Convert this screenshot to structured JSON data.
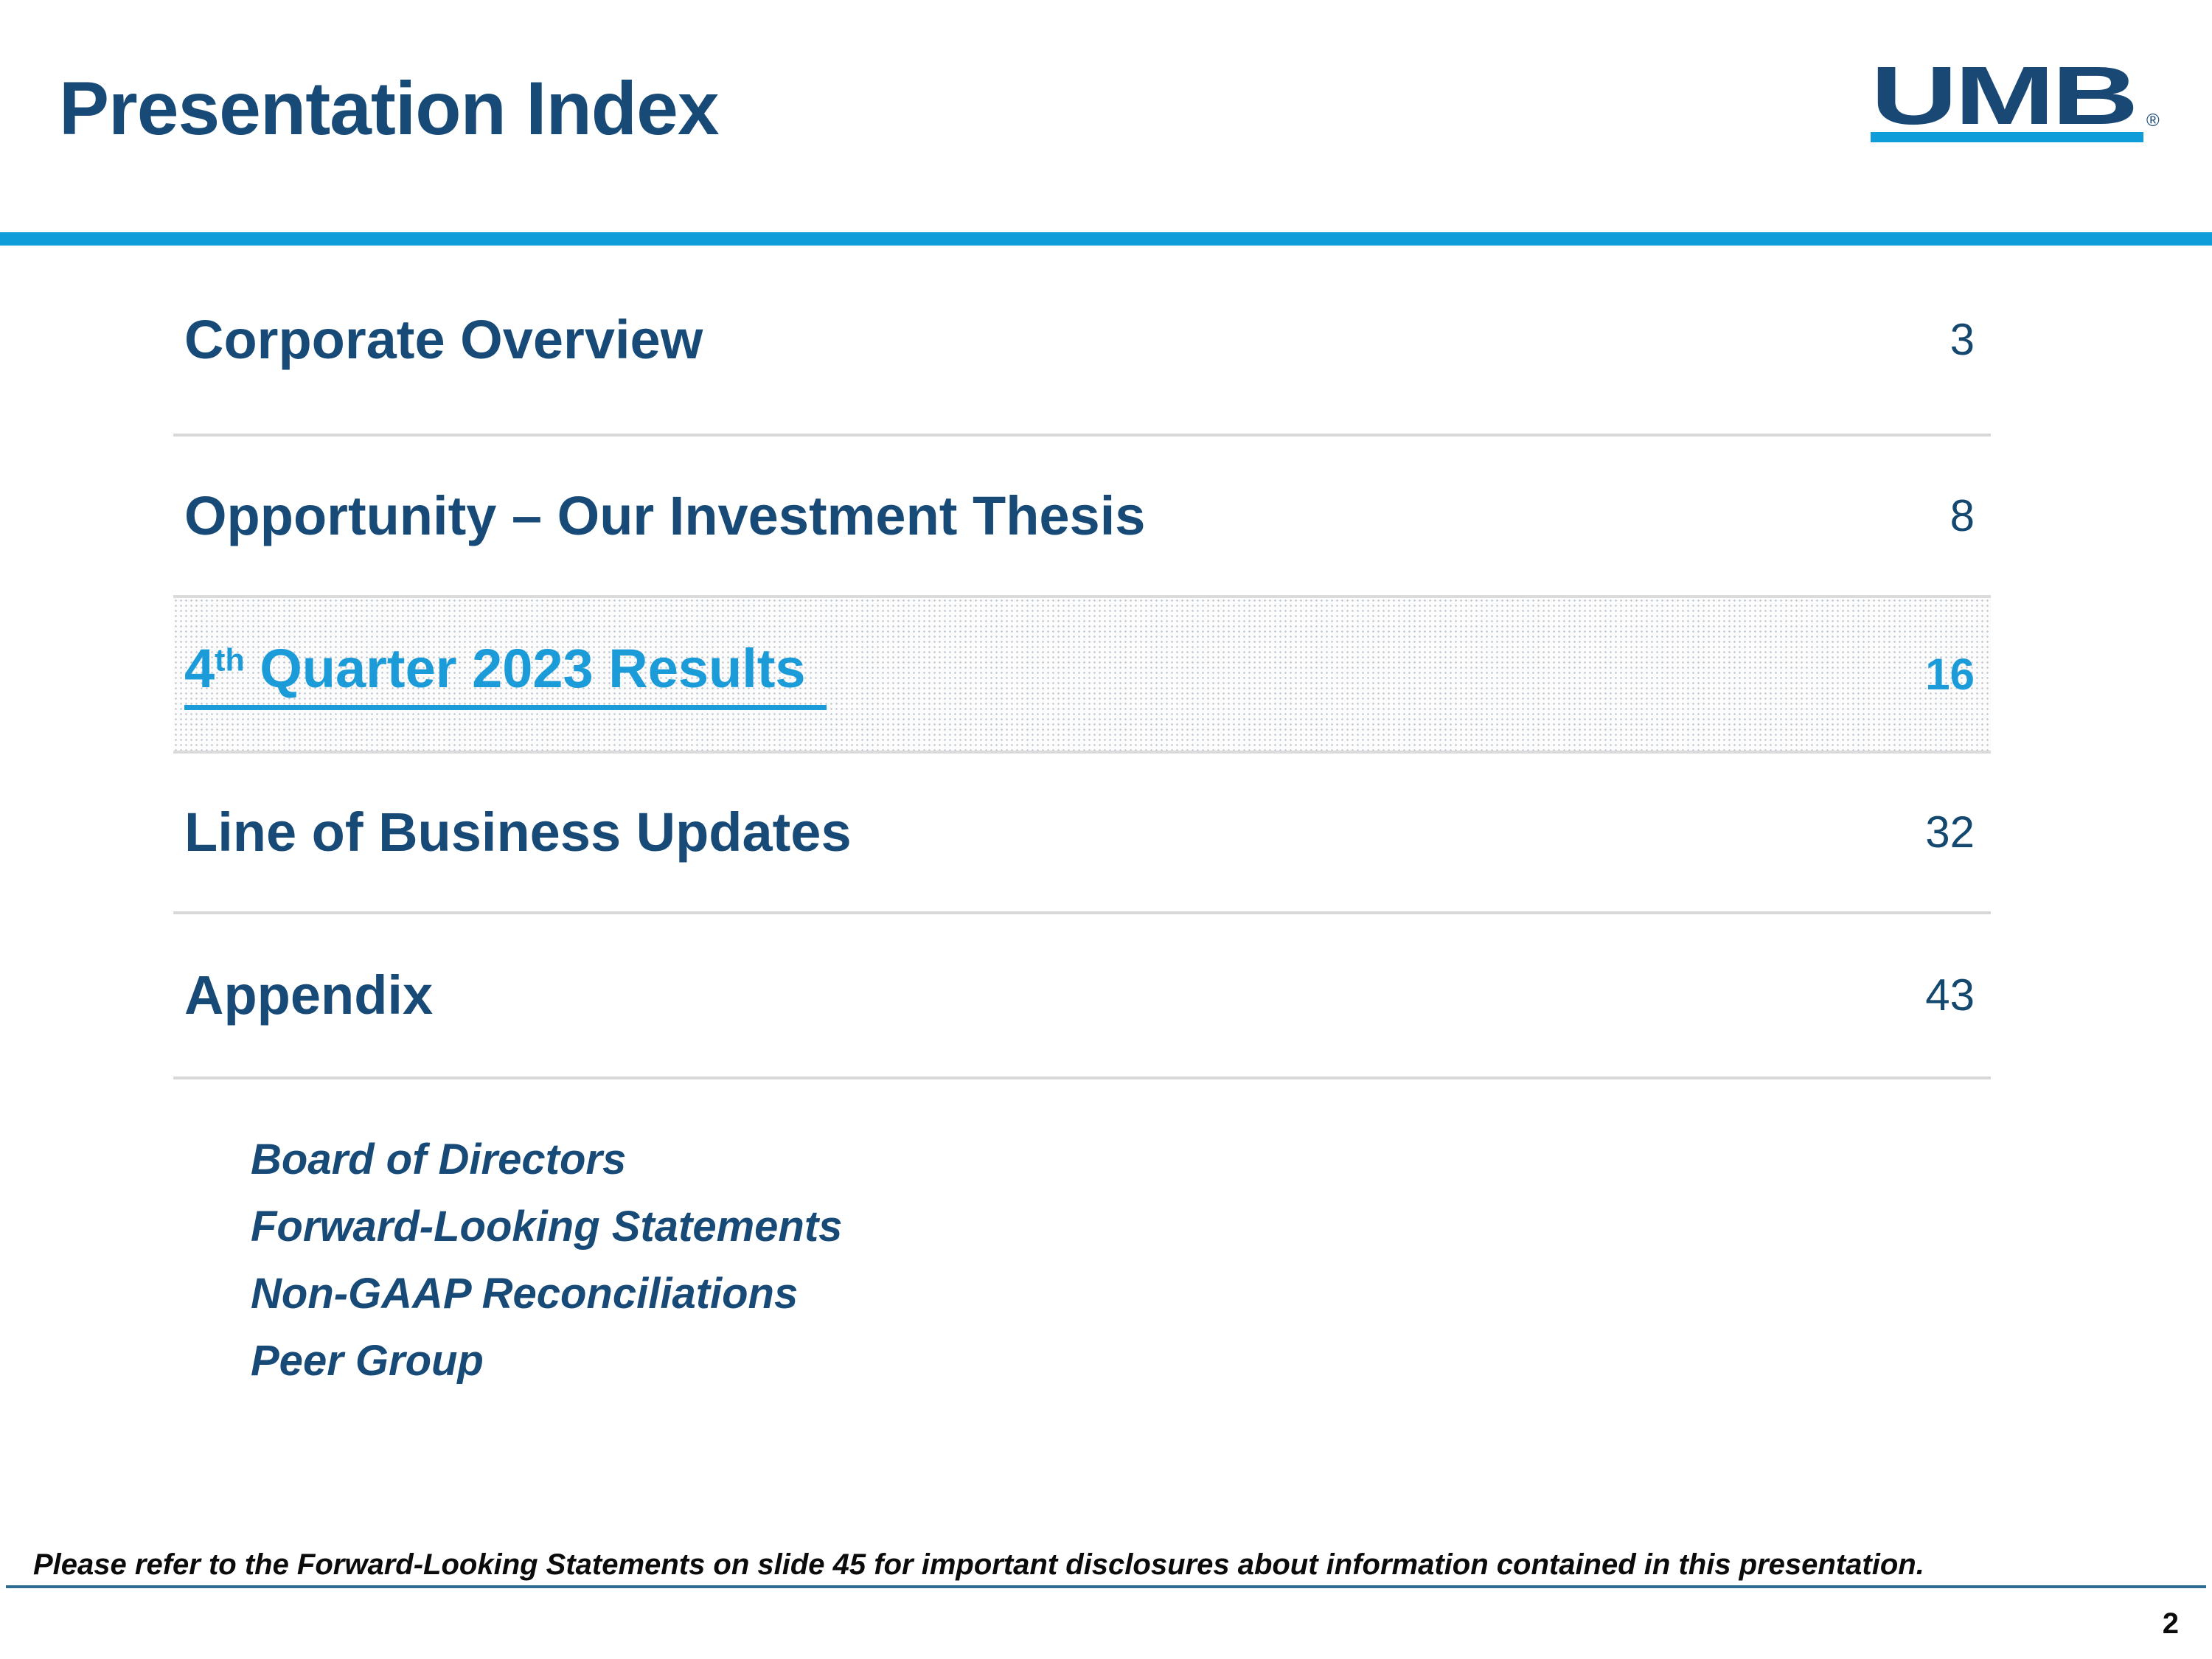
{
  "header": {
    "title": "Presentation Index",
    "logo": {
      "text": "UMB",
      "registered_mark": "®"
    }
  },
  "toc": {
    "rows": [
      {
        "label": "Corporate Overview",
        "page": "3",
        "active": false
      },
      {
        "label": "Opportunity – Our Investment Thesis",
        "page": "8",
        "active": false
      },
      {
        "label_prefix": "4",
        "label_sup": "th",
        "label_rest": " Quarter 2023 Results",
        "page": "16",
        "active": true
      },
      {
        "label": "Line of Business Updates",
        "page": "32",
        "active": false
      },
      {
        "label": "Appendix",
        "page": "43",
        "active": false
      }
    ],
    "appendix_subitems": [
      "Board of Directors",
      "Forward-Looking Statements",
      "Non-GAAP Reconciliations",
      "Peer Group"
    ]
  },
  "footer": {
    "note": "Please refer to the Forward-Looking Statements on slide 45 for important disclosures about information contained in this presentation.",
    "page_number": "2"
  },
  "colors": {
    "navy_text": "#174A77",
    "accent_blue_bar": "#0E9DD9",
    "link_blue": "#1B9CD9",
    "row_divider_gray": "#D8D8D8",
    "footer_line_blue": "#2C6C92"
  }
}
